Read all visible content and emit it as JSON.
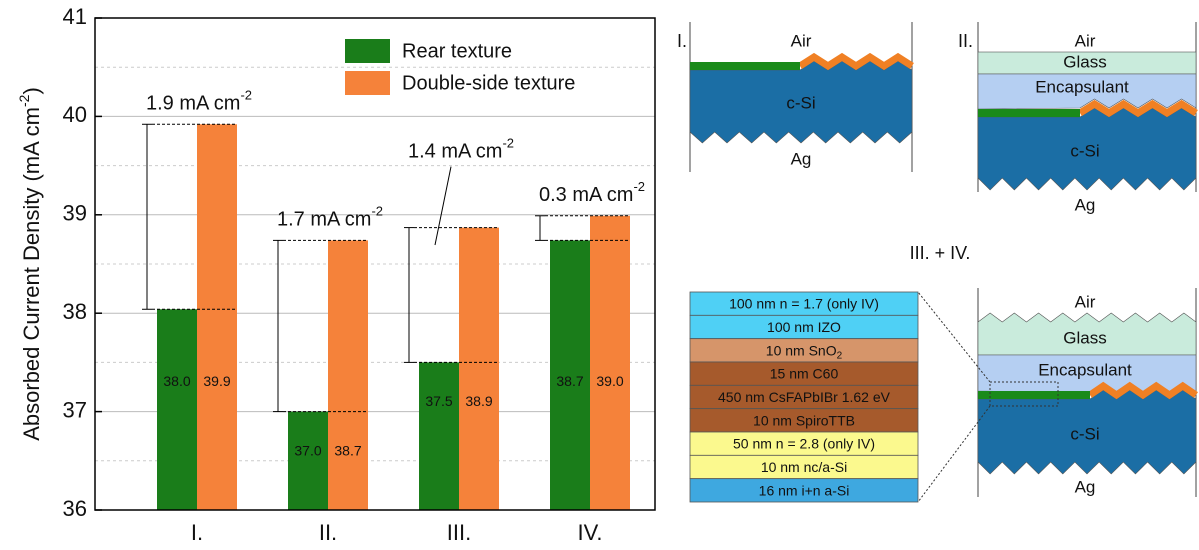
{
  "chart_data": {
    "type": "bar",
    "ylabel": "Absorbed Current Density (mA cm",
    "ylabel_exponent": "-2",
    "ylabel_end": ")",
    "categories": [
      "I.",
      "II.",
      "III.",
      "IV."
    ],
    "series": [
      {
        "name": "Rear texture",
        "color": "#1a7d1a",
        "values": [
          38.04,
          37.0,
          37.5,
          38.74
        ],
        "value_labels": [
          "38.0",
          "37.0",
          "37.5",
          "38.7"
        ]
      },
      {
        "name": "Double-side texture",
        "color": "#f5823a",
        "values": [
          39.92,
          38.74,
          38.87,
          38.99
        ],
        "value_labels": [
          "39.9",
          "38.7",
          "38.9",
          "39.0"
        ]
      }
    ],
    "annotations": [
      {
        "text": "1.9 mA cm",
        "exponent": "-2"
      },
      {
        "text": "1.7 mA cm",
        "exponent": "-2"
      },
      {
        "text": "1.4 mA cm",
        "exponent": "-2"
      },
      {
        "text": "0.3 mA cm",
        "exponent": "-2"
      }
    ],
    "ylim": [
      36,
      41
    ],
    "yticks": [
      36,
      37,
      38,
      39,
      40,
      41
    ],
    "yminorticks": [
      36.5,
      37.5,
      38.5,
      39.5,
      40.5
    ],
    "grid": true
  },
  "diagrams": [
    {
      "label": "I.",
      "layers": [
        "Air",
        "c-Si",
        "Ag"
      ]
    },
    {
      "label": "II.",
      "layers": [
        "Air",
        "Glass",
        "Encapsulant",
        "c-Si",
        "Ag"
      ]
    },
    {
      "label": "III. + IV.",
      "layers": [
        "Air",
        "Glass",
        "Encapsulant",
        "c-Si",
        "Ag"
      ],
      "stack": [
        {
          "text": "100 nm n = 1.7 (only IV)",
          "color": "#4fd0f5"
        },
        {
          "text": "100 nm IZO",
          "color": "#4fd0f5"
        },
        {
          "text": "10 nm SnO",
          "subscript": "2",
          "color": "#d6956a"
        },
        {
          "text": "15 nm C60",
          "color": "#a65a2c"
        },
        {
          "text": "450 nm CsFAPbIBr 1.62 eV",
          "color": "#a65a2c"
        },
        {
          "text": "10 nm SpiroTTB",
          "color": "#a65a2c"
        },
        {
          "text": "50 nm n = 2.8 (only IV)",
          "color": "#fbf98e"
        },
        {
          "text": "10 nm nc/a-Si",
          "color": "#fbf98e"
        },
        {
          "text": "16 nm i+n a-Si",
          "color": "#3ea8e0"
        }
      ]
    }
  ]
}
